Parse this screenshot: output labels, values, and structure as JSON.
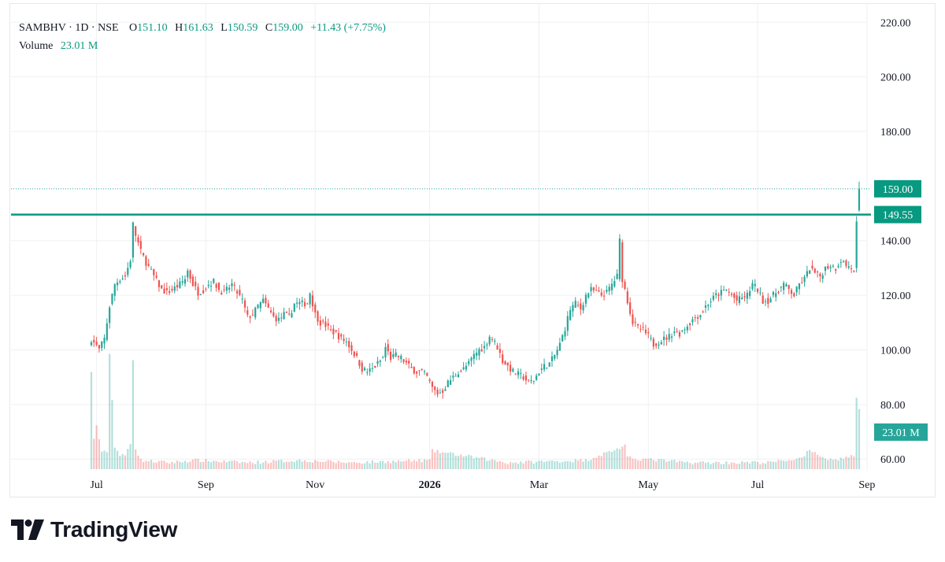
{
  "legend": {
    "symbol": "SAMBHV · 1D · NSE",
    "open_label": "O",
    "open": "151.10",
    "high_label": "H",
    "high": "161.63",
    "low_label": "L",
    "low": "150.59",
    "close_label": "C",
    "close": "159.00",
    "change": "+11.43 (+7.75%)",
    "volume_label": "Volume",
    "volume": "23.01 M"
  },
  "logo_text": "TradingView",
  "colors": {
    "up": "#26a69a",
    "down": "#ef5350",
    "accent": "#089981",
    "hline": "#089981",
    "grid": "#eef0f3",
    "text": "#131722"
  },
  "chart_data": {
    "type": "candlestick",
    "y_axis": {
      "ticks": [
        60,
        80,
        100,
        120,
        140,
        180,
        200,
        220
      ],
      "tick_labels": [
        "60.00",
        "80.00",
        "100.00",
        "120.00",
        "140.00",
        "180.00",
        "200.00",
        "220.00"
      ],
      "range": [
        54,
        227
      ]
    },
    "x_axis": {
      "labels": [
        "Jul",
        "Sep",
        "Nov",
        "2026",
        "Mar",
        "May",
        "Jul",
        "Sep"
      ],
      "bold": [
        false,
        false,
        false,
        true,
        false,
        false,
        false,
        false
      ],
      "positions_index": [
        2,
        44,
        86,
        130,
        172,
        214,
        256,
        298
      ]
    },
    "horizontal_line": {
      "value": 149.55,
      "label": "149.55"
    },
    "last_price": {
      "value": 159.0,
      "label": "159.00"
    },
    "volume_label": "23.01 M",
    "grid": true,
    "series_anchors": [
      [
        0,
        104
      ],
      [
        3,
        100
      ],
      [
        5,
        104
      ],
      [
        7,
        116
      ],
      [
        9,
        124
      ],
      [
        11,
        126
      ],
      [
        13,
        127
      ],
      [
        15,
        133
      ],
      [
        16,
        146
      ],
      [
        17,
        142
      ],
      [
        19,
        136
      ],
      [
        21,
        132
      ],
      [
        24,
        127
      ],
      [
        27,
        122
      ],
      [
        29,
        121
      ],
      [
        31,
        122
      ],
      [
        34,
        124
      ],
      [
        36,
        126
      ],
      [
        37,
        129
      ],
      [
        39,
        124
      ],
      [
        41,
        121
      ],
      [
        43,
        122
      ],
      [
        45,
        124
      ],
      [
        47,
        125
      ],
      [
        49,
        122
      ],
      [
        51,
        121
      ],
      [
        54,
        124
      ],
      [
        56,
        121
      ],
      [
        58,
        118
      ],
      [
        60,
        112
      ],
      [
        62,
        113
      ],
      [
        64,
        116
      ],
      [
        66,
        118
      ],
      [
        68,
        115
      ],
      [
        70,
        112
      ],
      [
        72,
        111
      ],
      [
        74,
        113
      ],
      [
        76,
        112
      ],
      [
        78,
        117
      ],
      [
        80,
        117
      ],
      [
        83,
        117
      ],
      [
        84,
        121
      ],
      [
        86,
        113
      ],
      [
        88,
        110
      ],
      [
        90,
        109
      ],
      [
        92,
        107
      ],
      [
        94,
        106
      ],
      [
        96,
        104
      ],
      [
        98,
        103
      ],
      [
        100,
        100
      ],
      [
        102,
        97
      ],
      [
        104,
        93
      ],
      [
        106,
        92
      ],
      [
        108,
        93
      ],
      [
        110,
        95
      ],
      [
        112,
        97
      ],
      [
        113,
        101
      ],
      [
        115,
        97
      ],
      [
        117,
        98
      ],
      [
        119,
        97
      ],
      [
        121,
        95
      ],
      [
        123,
        93
      ],
      [
        125,
        92
      ],
      [
        127,
        92
      ],
      [
        129,
        90
      ],
      [
        131,
        86
      ],
      [
        133,
        84
      ],
      [
        135,
        85
      ],
      [
        137,
        88
      ],
      [
        139,
        90
      ],
      [
        141,
        92
      ],
      [
        143,
        93
      ],
      [
        145,
        95
      ],
      [
        147,
        98
      ],
      [
        149,
        100
      ],
      [
        151,
        101
      ],
      [
        153,
        105
      ],
      [
        154,
        104
      ],
      [
        156,
        101
      ],
      [
        158,
        96
      ],
      [
        160,
        94
      ],
      [
        162,
        92
      ],
      [
        164,
        91
      ],
      [
        166,
        90
      ],
      [
        168,
        88
      ],
      [
        170,
        89
      ],
      [
        172,
        92
      ],
      [
        174,
        94
      ],
      [
        176,
        95
      ],
      [
        178,
        98
      ],
      [
        180,
        102
      ],
      [
        182,
        108
      ],
      [
        184,
        115
      ],
      [
        186,
        117
      ],
      [
        188,
        115
      ],
      [
        190,
        120
      ],
      [
        192,
        122
      ],
      [
        194,
        121
      ],
      [
        196,
        120
      ],
      [
        198,
        121
      ],
      [
        200,
        124
      ],
      [
        202,
        127
      ],
      [
        203,
        140
      ],
      [
        204,
        126
      ],
      [
        206,
        118
      ],
      [
        208,
        110
      ],
      [
        210,
        108
      ],
      [
        212,
        107
      ],
      [
        214,
        105
      ],
      [
        216,
        102
      ],
      [
        218,
        103
      ],
      [
        220,
        104
      ],
      [
        222,
        105
      ],
      [
        224,
        107
      ],
      [
        226,
        106
      ],
      [
        228,
        108
      ],
      [
        230,
        110
      ],
      [
        232,
        112
      ],
      [
        234,
        113
      ],
      [
        236,
        116
      ],
      [
        238,
        118
      ],
      [
        240,
        120
      ],
      [
        242,
        121
      ],
      [
        244,
        122
      ],
      [
        246,
        120
      ],
      [
        248,
        118
      ],
      [
        250,
        119
      ],
      [
        252,
        120
      ],
      [
        254,
        124
      ],
      [
        256,
        122
      ],
      [
        258,
        118
      ],
      [
        260,
        118
      ],
      [
        262,
        120
      ],
      [
        264,
        122
      ],
      [
        266,
        124
      ],
      [
        268,
        122
      ],
      [
        270,
        120
      ],
      [
        272,
        124
      ],
      [
        274,
        126
      ],
      [
        276,
        130
      ],
      [
        278,
        128
      ],
      [
        280,
        127
      ],
      [
        282,
        130
      ],
      [
        284,
        131
      ],
      [
        286,
        130
      ],
      [
        288,
        133
      ],
      [
        290,
        131
      ],
      [
        292,
        130
      ],
      [
        293,
        128
      ],
      [
        294,
        147
      ],
      [
        295,
        159
      ]
    ],
    "volume_anchors": [
      [
        0,
        40
      ],
      [
        1,
        12
      ],
      [
        2,
        18
      ],
      [
        4,
        6
      ],
      [
        6,
        7
      ],
      [
        7,
        48
      ],
      [
        9,
        9
      ],
      [
        11,
        5
      ],
      [
        13,
        5
      ],
      [
        15,
        10
      ],
      [
        16,
        46
      ],
      [
        17,
        8
      ],
      [
        19,
        3
      ],
      [
        30,
        2
      ],
      [
        40,
        3
      ],
      [
        60,
        2
      ],
      [
        80,
        3
      ],
      [
        100,
        2
      ],
      [
        130,
        3
      ],
      [
        131,
        7
      ],
      [
        160,
        2
      ],
      [
        190,
        3
      ],
      [
        205,
        9
      ],
      [
        206,
        4
      ],
      [
        230,
        2
      ],
      [
        260,
        2
      ],
      [
        274,
        4
      ],
      [
        275,
        7
      ],
      [
        285,
        3
      ],
      [
        293,
        5
      ],
      [
        294,
        30
      ],
      [
        295,
        24
      ]
    ]
  }
}
